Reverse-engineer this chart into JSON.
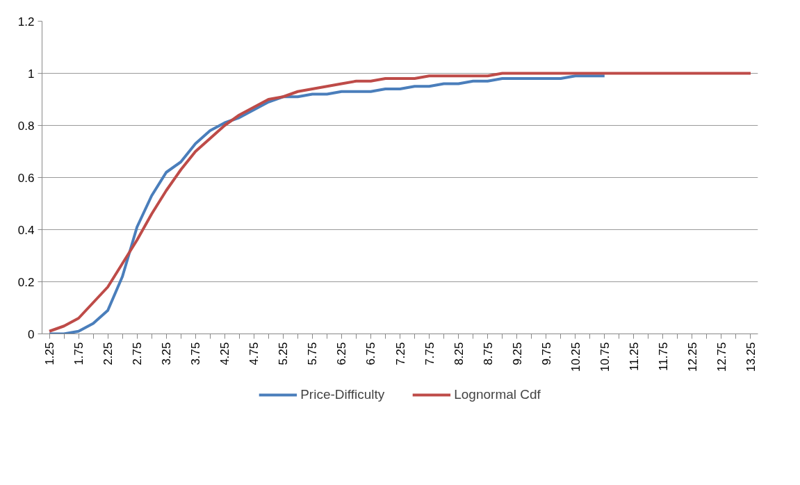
{
  "chart_data": {
    "type": "line",
    "categories": [
      "1.25",
      null,
      "1.75",
      null,
      "2.25",
      null,
      "2.75",
      null,
      "3.25",
      null,
      "3.75",
      null,
      "4.25",
      null,
      "4.75",
      null,
      "5.25",
      null,
      "5.75",
      null,
      "6.25",
      null,
      "6.75",
      null,
      "7.25",
      null,
      "7.75",
      null,
      "8.25",
      null,
      "8.75",
      null,
      "9.25",
      null,
      "9.75",
      null,
      "10.25",
      null,
      "10.75",
      null,
      "11.25",
      null,
      "11.75",
      null,
      "12.25",
      null,
      "12.75",
      null,
      "13.25"
    ],
    "series": [
      {
        "name": "Price-Difficulty",
        "color": "#4a7ebb",
        "values": [
          0,
          0,
          0.01,
          0.04,
          0.09,
          0.22,
          0.41,
          0.53,
          0.62,
          0.66,
          0.73,
          0.78,
          0.81,
          0.83,
          0.86,
          0.89,
          0.91,
          0.91,
          0.92,
          0.92,
          0.93,
          0.93,
          0.93,
          0.94,
          0.94,
          0.95,
          0.95,
          0.96,
          0.96,
          0.97,
          0.97,
          0.98,
          0.98,
          0.98,
          0.98,
          0.98,
          0.99,
          0.99,
          0.99,
          null,
          null,
          null,
          null,
          null,
          null,
          null,
          null,
          null,
          null
        ]
      },
      {
        "name": "Lognormal Cdf",
        "color": "#be4b48",
        "values": [
          0.01,
          0.03,
          0.06,
          0.12,
          0.18,
          0.27,
          0.36,
          0.46,
          0.55,
          0.63,
          0.7,
          0.75,
          0.8,
          0.84,
          0.87,
          0.9,
          0.91,
          0.93,
          0.94,
          0.95,
          0.96,
          0.97,
          0.97,
          0.98,
          0.98,
          0.98,
          0.99,
          0.99,
          0.99,
          0.99,
          0.99,
          1,
          1,
          1,
          1,
          1,
          1,
          1,
          1,
          1,
          1,
          1,
          1,
          1,
          1,
          1,
          1,
          1,
          1
        ]
      }
    ],
    "ylim": [
      0,
      1.2
    ],
    "yticks": [
      0,
      0.2,
      0.4,
      0.6,
      0.8,
      1,
      1.2
    ],
    "grid": "y",
    "legend": "bottom",
    "marker": "none",
    "line_style": "solid"
  }
}
